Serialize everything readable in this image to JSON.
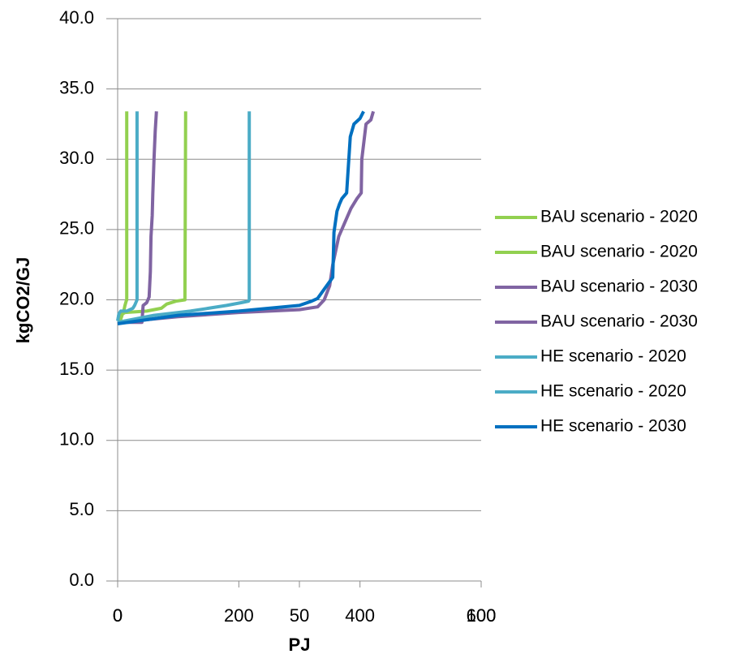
{
  "chart_data": {
    "type": "line",
    "xlabel": "PJ",
    "ylabel": "kgCO2/GJ",
    "xlim": [
      0,
      600
    ],
    "xticks": [
      0,
      200,
      400,
      600
    ],
    "x2lim": [
      0,
      100
    ],
    "x2ticks": [
      0,
      50,
      100
    ],
    "ylim": [
      0,
      40
    ],
    "yticks": [
      {
        "value": 0,
        "label": "0.0"
      },
      {
        "value": 5,
        "label": "5.0"
      },
      {
        "value": 10,
        "label": "10.0"
      },
      {
        "value": 15,
        "label": "15.0"
      },
      {
        "value": 20,
        "label": "20.0"
      },
      {
        "value": 25,
        "label": "25.0"
      },
      {
        "value": 30,
        "label": "30.0"
      },
      {
        "value": 35,
        "label": "35.0"
      },
      {
        "value": 40,
        "label": "40.0"
      }
    ],
    "grid": true,
    "legend": "right",
    "series": [
      {
        "name": "BAU scenario - 2020",
        "color": "#92d050",
        "x": [
          0,
          5,
          8,
          10,
          12,
          14,
          15,
          15
        ],
        "values": [
          18.6,
          18.6,
          19.0,
          19.2,
          19.6,
          19.9,
          20,
          33.4
        ]
      },
      {
        "name": "BAU scenario - 2020",
        "color": "#92d050",
        "axis": "x2",
        "x": [
          0,
          2,
          8,
          12,
          13.5,
          16,
          18.5,
          18.7
        ],
        "values": [
          18.8,
          19.1,
          19.2,
          19.4,
          19.7,
          19.9,
          20,
          33.4
        ]
      },
      {
        "name": "BAU scenario - 2030",
        "color": "#8064a2",
        "x": [
          0,
          20,
          40,
          42,
          48,
          52,
          54,
          55,
          57,
          58,
          60,
          62,
          64
        ],
        "values": [
          18.4,
          18.4,
          18.4,
          19.6,
          19.8,
          20.2,
          22,
          24.5,
          26,
          27.5,
          30,
          32,
          33.4
        ]
      },
      {
        "name": "BAU scenario - 2030",
        "color": "#8064a2",
        "x": [
          0,
          100,
          200,
          300,
          330,
          341,
          350,
          355,
          365,
          375,
          385,
          395,
          402,
          403,
          410,
          418,
          422
        ],
        "values": [
          18.4,
          18.8,
          19.1,
          19.3,
          19.5,
          20,
          21,
          22.5,
          24.5,
          25.5,
          26.5,
          27.2,
          27.6,
          30,
          32.5,
          32.8,
          33.4
        ]
      },
      {
        "name": "HE scenario - 2020",
        "color": "#4bacc6",
        "x": [
          0,
          2,
          5,
          15,
          25,
          28,
          30,
          32,
          32
        ],
        "values": [
          18.5,
          19.0,
          19.2,
          19.2,
          19.4,
          19.6,
          19.8,
          20,
          33.4
        ]
      },
      {
        "name": "HE scenario - 2020",
        "color": "#4bacc6",
        "axis": "x2",
        "x": [
          0,
          10,
          20,
          25,
          30,
          34,
          36,
          36.2,
          36.2
        ],
        "values": [
          18.4,
          18.9,
          19.2,
          19.4,
          19.6,
          19.8,
          19.9,
          20,
          33.4
        ]
      },
      {
        "name": "HE scenario - 2030",
        "color": "#0070c0",
        "x": [
          0,
          100,
          200,
          300,
          320,
          330,
          345,
          355,
          357,
          362,
          366,
          370,
          378,
          384,
          390,
          400,
          406
        ],
        "values": [
          18.3,
          18.9,
          19.2,
          19.6,
          19.9,
          20.1,
          21,
          21.6,
          24.8,
          26.3,
          26.8,
          27.2,
          27.6,
          31.6,
          32.5,
          32.9,
          33.4
        ]
      }
    ]
  }
}
